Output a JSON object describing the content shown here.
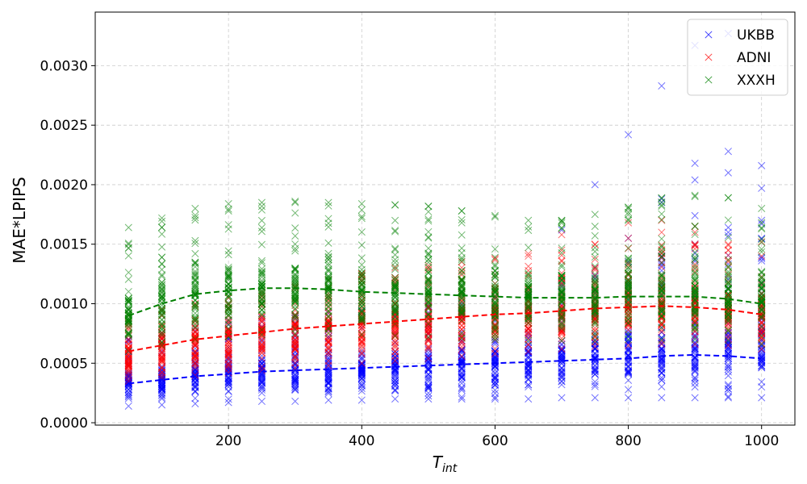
{
  "chart_data": {
    "type": "scatter",
    "xlabel_main": "T",
    "xlabel_sub": "int",
    "ylabel": "MAE*LPIPS",
    "xlim": [
      0,
      1050
    ],
    "ylim": [
      -2e-05,
      0.00345
    ],
    "grid": true,
    "legend_position": "top-right",
    "x_ticks": [
      200,
      400,
      600,
      800,
      1000
    ],
    "y_ticks": [
      0.0,
      0.0005,
      0.001,
      0.0015,
      0.002,
      0.0025,
      0.003
    ],
    "y_tick_labels": [
      "0.0000",
      "0.0005",
      "0.0010",
      "0.0015",
      "0.0020",
      "0.0025",
      "0.0030"
    ],
    "x_values": [
      50,
      100,
      150,
      200,
      250,
      300,
      350,
      400,
      450,
      500,
      550,
      600,
      650,
      700,
      750,
      800,
      850,
      900,
      950,
      1000
    ],
    "series": [
      {
        "name": "UKBB",
        "color": "#0000ff",
        "marker": "x",
        "trend": [
          0.00033,
          0.00036,
          0.00039,
          0.00041,
          0.00043,
          0.00044,
          0.00045,
          0.00046,
          0.00047,
          0.00048,
          0.00049,
          0.0005,
          0.00051,
          0.00052,
          0.00053,
          0.00054,
          0.00056,
          0.00057,
          0.00056,
          0.00054
        ],
        "range_low": [
          0.00014,
          0.00015,
          0.00016,
          0.00017,
          0.00018,
          0.00018,
          0.00019,
          0.00019,
          0.0002,
          0.0002,
          0.0002,
          0.0002,
          0.0002,
          0.00021,
          0.00021,
          0.00021,
          0.00021,
          0.00021,
          0.00021,
          0.00021
        ],
        "range_high": [
          0.0007,
          0.00075,
          0.0008,
          0.00085,
          0.00088,
          0.0009,
          0.00092,
          0.00094,
          0.00096,
          0.00098,
          0.001,
          0.00105,
          0.0011,
          0.0012,
          0.0013,
          0.00135,
          0.0014,
          0.0015,
          0.0016,
          0.0017
        ],
        "outliers": [
          [
            700,
            0.00162
          ],
          [
            750,
            0.002
          ],
          [
            800,
            0.00155
          ],
          [
            800,
            0.00242
          ],
          [
            850,
            0.00188
          ],
          [
            850,
            0.00185
          ],
          [
            850,
            0.00283
          ],
          [
            900,
            0.00218
          ],
          [
            900,
            0.00204
          ],
          [
            900,
            0.00174
          ],
          [
            900,
            0.00317
          ],
          [
            950,
            0.00228
          ],
          [
            950,
            0.0021
          ],
          [
            950,
            0.00164
          ],
          [
            950,
            0.00327
          ],
          [
            1000,
            0.00216
          ],
          [
            1000,
            0.00197
          ],
          [
            1000,
            0.00167
          ]
        ]
      },
      {
        "name": "ADNI",
        "color": "#ff0000",
        "marker": "x",
        "trend": [
          0.0006,
          0.00065,
          0.0007,
          0.00073,
          0.00076,
          0.00079,
          0.00081,
          0.00083,
          0.00085,
          0.00087,
          0.00089,
          0.00091,
          0.00092,
          0.00094,
          0.00096,
          0.00097,
          0.00098,
          0.00097,
          0.00095,
          0.00091
        ],
        "range_low": [
          0.00035,
          0.00038,
          0.0004,
          0.00042,
          0.00044,
          0.00046,
          0.00048,
          0.0005,
          0.00052,
          0.00054,
          0.00056,
          0.00058,
          0.0006,
          0.00062,
          0.00064,
          0.00065,
          0.00066,
          0.00066,
          0.00065,
          0.00062
        ],
        "range_high": [
          0.0009,
          0.00095,
          0.001,
          0.00105,
          0.0011,
          0.00115,
          0.0012,
          0.00125,
          0.0013,
          0.00132,
          0.00135,
          0.00138,
          0.0014,
          0.00145,
          0.0015,
          0.00155,
          0.0016,
          0.0016,
          0.0015,
          0.0014
        ],
        "outliers": [
          [
            650,
            0.00142
          ],
          [
            700,
            0.00158
          ],
          [
            800,
            0.00168
          ],
          [
            850,
            0.0017
          ],
          [
            900,
            0.00165
          ],
          [
            1000,
            0.00152
          ]
        ]
      },
      {
        "name": "XXXH",
        "color": "#008000",
        "marker": "x",
        "trend": [
          0.0009,
          0.001,
          0.00108,
          0.00111,
          0.00113,
          0.00113,
          0.00112,
          0.0011,
          0.00109,
          0.00108,
          0.00107,
          0.00106,
          0.00105,
          0.00105,
          0.00105,
          0.00106,
          0.00106,
          0.00106,
          0.00104,
          0.001
        ],
        "range_low": [
          0.0006,
          0.00065,
          0.0007,
          0.00072,
          0.00074,
          0.00075,
          0.00075,
          0.00074,
          0.00073,
          0.00072,
          0.00071,
          0.0007,
          0.00069,
          0.00069,
          0.00069,
          0.0007,
          0.0007,
          0.0007,
          0.00069,
          0.00066
        ],
        "range_high": [
          0.00164,
          0.00172,
          0.0018,
          0.00184,
          0.00185,
          0.00186,
          0.00185,
          0.00184,
          0.00183,
          0.00182,
          0.00178,
          0.00174,
          0.0017,
          0.0017,
          0.00175,
          0.00181,
          0.00189,
          0.0019,
          0.00189,
          0.0018
        ],
        "outliers": [
          [
            300,
            0.00185
          ],
          [
            450,
            0.00183
          ],
          [
            550,
            0.00178
          ],
          [
            800,
            0.00181
          ],
          [
            900,
            0.00191
          ],
          [
            950,
            0.00189
          ]
        ]
      }
    ]
  }
}
